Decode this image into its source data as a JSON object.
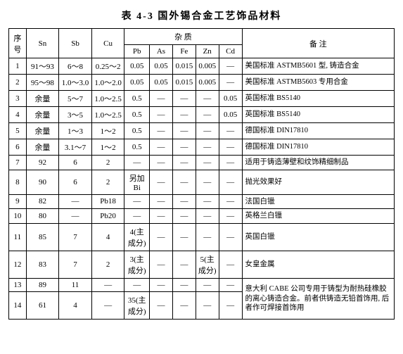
{
  "title": "表 4-3  国外锡合金工艺饰品材料",
  "headers": {
    "idx": "序号",
    "sn": "Sn",
    "sb": "Sb",
    "cu": "Cu",
    "impurity": "杂    质",
    "pb": "Pb",
    "as": "As",
    "fe": "Fe",
    "zn": "Zn",
    "cd": "Cd",
    "remark": "备    注"
  },
  "rows": [
    {
      "idx": "1",
      "sn": "91～93",
      "sb": "6～8",
      "cu": "0.25～2",
      "pb": "0.05",
      "as": "0.05",
      "fe": "0.015",
      "zn": "0.005",
      "cd": "—",
      "remark": "美国标准 ASTMB5601 型, 铸造合金",
      "rspan": 1
    },
    {
      "idx": "2",
      "sn": "95～98",
      "sb": "1.0～3.0",
      "cu": "1.0～2.0",
      "pb": "0.05",
      "as": "0.05",
      "fe": "0.015",
      "zn": "0.005",
      "cd": "—",
      "remark": "美国标准 ASTMB5603 专用合金",
      "rspan": 1
    },
    {
      "idx": "3",
      "sn": "余量",
      "sb": "5～7",
      "cu": "1.0～2.5",
      "pb": "0.5",
      "as": "—",
      "fe": "—",
      "zn": "—",
      "cd": "0.05",
      "remark": "英国标准 BS5140",
      "rspan": 1
    },
    {
      "idx": "4",
      "sn": "余量",
      "sb": "3～5",
      "cu": "1.0～2.5",
      "pb": "0.5",
      "as": "—",
      "fe": "—",
      "zn": "—",
      "cd": "0.05",
      "remark": "英国标准 BS5140",
      "rspan": 1
    },
    {
      "idx": "5",
      "sn": "余量",
      "sb": "1～3",
      "cu": "1～2",
      "pb": "0.5",
      "as": "—",
      "fe": "—",
      "zn": "—",
      "cd": "—",
      "remark": "德国标准 DIN17810",
      "rspan": 1
    },
    {
      "idx": "6",
      "sn": "余量",
      "sb": "3.1～7",
      "cu": "1～2",
      "pb": "0.5",
      "as": "—",
      "fe": "—",
      "zn": "—",
      "cd": "—",
      "remark": "德国标准 DIN17810",
      "rspan": 1
    },
    {
      "idx": "7",
      "sn": "92",
      "sb": "6",
      "cu": "2",
      "pb": "—",
      "as": "—",
      "fe": "—",
      "zn": "—",
      "cd": "—",
      "remark": "适用于铸造薄壁和纹饰精细制品",
      "rspan": 1
    },
    {
      "idx": "8",
      "sn": "90",
      "sb": "6",
      "cu": "2",
      "pb": "另加 Bi",
      "as": "—",
      "fe": "—",
      "zn": "—",
      "cd": "—",
      "remark": "抛光效果好",
      "rspan": 1
    },
    {
      "idx": "9",
      "sn": "82",
      "sb": "—",
      "cu": "Pb18",
      "pb": "—",
      "as": "—",
      "fe": "—",
      "zn": "—",
      "cd": "—",
      "remark": "法国白镴",
      "rspan": 1
    },
    {
      "idx": "10",
      "sn": "80",
      "sb": "—",
      "cu": "Pb20",
      "pb": "—",
      "as": "—",
      "fe": "—",
      "zn": "—",
      "cd": "—",
      "remark": "英格兰白镴",
      "rspan": 1
    },
    {
      "idx": "11",
      "sn": "85",
      "sb": "7",
      "cu": "4",
      "pb": "4(主成分)",
      "as": "—",
      "fe": "—",
      "zn": "—",
      "cd": "—",
      "remark": "英国白镴",
      "rspan": 1
    },
    {
      "idx": "12",
      "sn": "83",
      "sb": "7",
      "cu": "2",
      "pb": "3(主成分)",
      "as": "—",
      "fe": "—",
      "zn": "5(主成分)",
      "cd": "—",
      "remark": "女皇金属",
      "rspan": 1
    },
    {
      "idx": "13",
      "sn": "89",
      "sb": "11",
      "cu": "—",
      "pb": "—",
      "as": "—",
      "fe": "—",
      "zn": "—",
      "cd": "—",
      "remark": "意大利 CABE 公司专用于铸型为耐热硅橡胶的离心铸造合金。前者供铸造无铅首饰用, 后者作可焊接首饰用",
      "rspan": 2
    },
    {
      "idx": "14",
      "sn": "61",
      "sb": "4",
      "cu": "—",
      "pb": "35(主成分)",
      "as": "—",
      "fe": "—",
      "zn": "—",
      "cd": "—",
      "remark": null,
      "rspan": 0
    }
  ]
}
